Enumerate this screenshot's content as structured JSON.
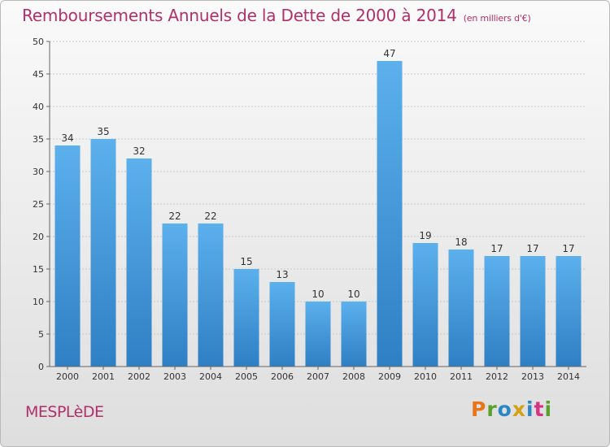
{
  "header": {
    "title": "Remboursements Annuels de la Dette de 2000 à 2014",
    "subtitle": "(en milliers d'€)"
  },
  "footer": {
    "commune": "MESPLèDE",
    "logo": [
      "P",
      "r",
      "o",
      "x",
      "i",
      "t",
      "i"
    ],
    "logo_colors": [
      "#e8751a",
      "#5aa02c",
      "#2b86c5",
      "#d4a017",
      "#2b86c5",
      "#d63384",
      "#5aa02c"
    ]
  },
  "chart_data": {
    "type": "bar",
    "categories": [
      "2000",
      "2001",
      "2002",
      "2003",
      "2004",
      "2005",
      "2006",
      "2007",
      "2008",
      "2009",
      "2010",
      "2011",
      "2012",
      "2013",
      "2014"
    ],
    "values": [
      34,
      35,
      32,
      22,
      22,
      15,
      13,
      10,
      10,
      47,
      19,
      18,
      17,
      17,
      17
    ],
    "title": "Remboursements Annuels de la Dette de 2000 à 2014",
    "xlabel": "",
    "ylabel": "",
    "ylim": [
      0,
      50
    ],
    "yticks": [
      0,
      5,
      10,
      15,
      20,
      25,
      30,
      35,
      40,
      45,
      50
    ],
    "grid": true,
    "bar_color": "#3d92d9",
    "bar_color_light": "#5cb0ec"
  }
}
